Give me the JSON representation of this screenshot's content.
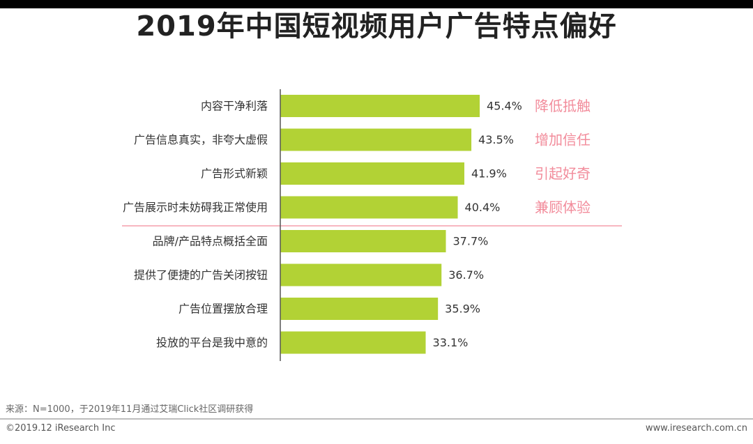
{
  "title": "2019年中国短视频用户广告特点偏好",
  "footer": {
    "source": "来源：N=1000，于2019年11月通过艾瑞Click社区调研获得",
    "copyright": "©2019.12 iResearch Inc",
    "website": "www.iresearch.com.cn"
  },
  "colors": {
    "bar": "#b2d235",
    "annotation": "#f28c9b",
    "divider": "#f28c9b",
    "axis": "#555555",
    "text": "#333333"
  },
  "chart_data": {
    "type": "bar",
    "orientation": "horizontal",
    "title": "2019年中国短视频用户广告特点偏好",
    "categories": [
      "内容干净利落",
      "广告信息真实，非夸大虚假",
      "广告形式新颖",
      "广告展示时未妨碍我正常使用",
      "品牌/产品特点概括全面",
      "提供了便捷的广告关闭按钮",
      "广告位置摆放合理",
      "投放的平台是我中意的"
    ],
    "values": [
      45.4,
      43.5,
      41.9,
      40.4,
      37.7,
      36.7,
      35.9,
      33.1
    ],
    "value_labels": [
      "45.4%",
      "43.5%",
      "41.9%",
      "40.4%",
      "37.7%",
      "36.7%",
      "35.9%",
      "33.1%"
    ],
    "annotations": [
      "降低抵触",
      "增加信任",
      "引起好奇",
      "兼顾体验"
    ],
    "xlim": [
      0,
      65
    ],
    "grid": false,
    "legend": "none"
  }
}
